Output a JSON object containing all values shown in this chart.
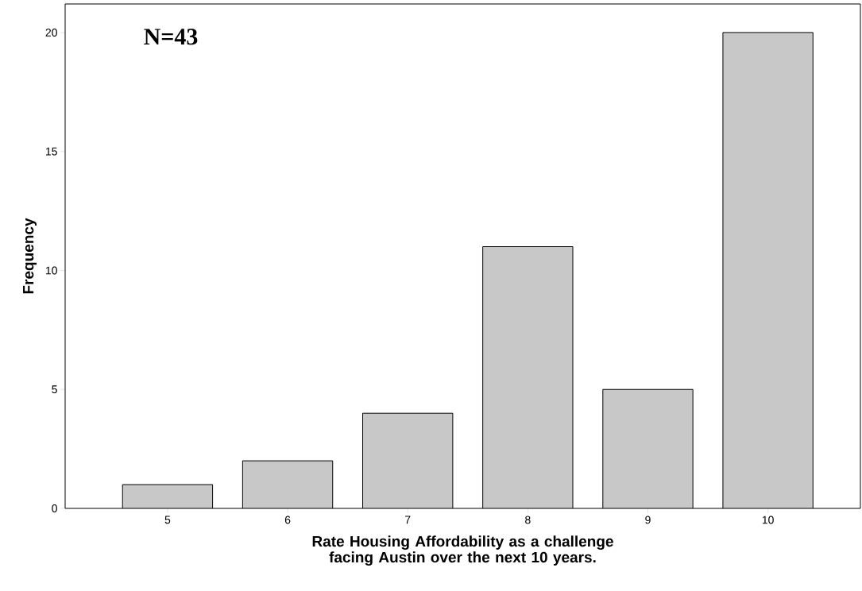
{
  "chart_data": {
    "type": "bar",
    "xlabel": "Rate Housing Affordability as a challenge facing Austin over the next 10 years.",
    "ylabel": "Frequency",
    "annotations": [
      "N=43"
    ],
    "categories": [
      "5",
      "6",
      "7",
      "8",
      "9",
      "10"
    ],
    "values": [
      1,
      2,
      4,
      11,
      5,
      20
    ],
    "color": "#c8c8c8",
    "ylim": [
      0,
      21.2
    ],
    "yticks": [
      0,
      5,
      10,
      15,
      20
    ],
    "grid": false
  }
}
